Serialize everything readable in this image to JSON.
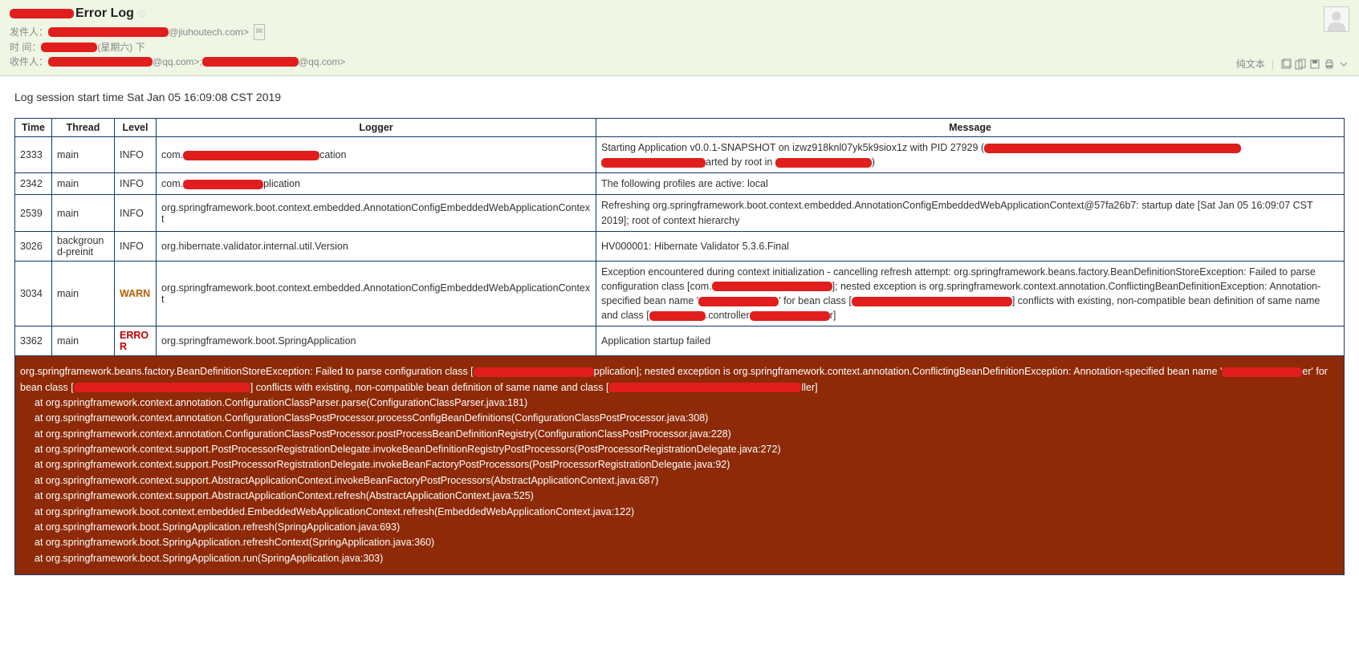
{
  "colors": {
    "header_bg": "#f0f6e4",
    "table_border": "#13396b",
    "stack_bg": "#8e2a07",
    "redact": "#e01e1e",
    "warn_text": "#b35c00",
    "error_text": "#c00000"
  },
  "header": {
    "subject_suffix": " Error Log",
    "star": "☆",
    "from_label": "发件人：",
    "from_suffix": "@jiuhoutech.com>",
    "time_label": "时   间：",
    "time_suffix": "(星期六) 下",
    "to_label": "收件人：",
    "to_mid1": "@qq.com>; ",
    "to_suffix": "@qq.com>",
    "text_mode": "纯文本"
  },
  "session_line": "Log session start time Sat Jan 05 16:09:08 CST 2019",
  "table": {
    "headers": {
      "time": "Time",
      "thread": "Thread",
      "level": "Level",
      "logger": "Logger",
      "message": "Message"
    },
    "rows": [
      {
        "time": "2333",
        "thread": "main",
        "level": "INFO",
        "logger_prefix": "com.",
        "logger_redact_w": 170,
        "logger_suffix": "cation",
        "message_parts": [
          {
            "t": "Starting Application v0.0.1-SNAPSHOT on izwz918knl07yk5k9siox1z with PID 27929 ("
          },
          {
            "r": 320
          },
          {
            "br": true
          },
          {
            "r": 130
          },
          {
            "t": "arted by root in "
          },
          {
            "r": 120
          },
          {
            "t": ")"
          }
        ]
      },
      {
        "time": "2342",
        "thread": "main",
        "level": "INFO",
        "logger_prefix": "com.",
        "logger_redact_w": 100,
        "logger_suffix": "plication",
        "message_parts": [
          {
            "t": "The following profiles are active: local"
          }
        ]
      },
      {
        "time": "2539",
        "thread": "main",
        "level": "INFO",
        "logger_prefix": "org.springframework.boot.context.embedded.AnnotationConfigEmbeddedWebApplicationContext",
        "logger_redact_w": 0,
        "logger_suffix": "",
        "message_parts": [
          {
            "t": "Refreshing org.springframework.boot.context.embedded.AnnotationConfigEmbeddedWebApplicationContext@57fa26b7: startup date [Sat Jan 05 16:09:07 CST 2019]; root of context hierarchy"
          }
        ]
      },
      {
        "time": "3026",
        "thread": "background-preinit",
        "level": "INFO",
        "logger_prefix": "org.hibernate.validator.internal.util.Version",
        "logger_redact_w": 0,
        "logger_suffix": "",
        "message_parts": [
          {
            "t": "HV000001: Hibernate Validator 5.3.6.Final"
          }
        ]
      },
      {
        "time": "3034",
        "thread": "main",
        "level": "WARN",
        "logger_prefix": "org.springframework.boot.context.embedded.AnnotationConfigEmbeddedWebApplicationContext",
        "logger_redact_w": 0,
        "logger_suffix": "",
        "message_parts": [
          {
            "t": "Exception encountered during context initialization - cancelling refresh attempt: org.springframework.beans.factory.BeanDefinitionStoreException: Failed to parse configuration class [com."
          },
          {
            "r": 150
          },
          {
            "t": "]; nested exception is org.springframework.context.annotation.ConflictingBeanDefinitionException: Annotation-specified bean name '"
          },
          {
            "r": 100
          },
          {
            "t": "' for bean class ["
          },
          {
            "r": 200
          },
          {
            "t": "] conflicts with existing, non-compatible bean definition of same name and class ["
          },
          {
            "r": 70
          },
          {
            "t": ".controller"
          },
          {
            "r": 100
          },
          {
            "t": "r]"
          }
        ]
      },
      {
        "time": "3362",
        "thread": "main",
        "level": "ERROR",
        "logger_prefix": "org.springframework.boot.SpringApplication",
        "logger_redact_w": 0,
        "logger_suffix": "",
        "message_parts": [
          {
            "t": "Application startup failed"
          }
        ]
      }
    ]
  },
  "stacktrace": {
    "top_parts": [
      {
        "t": "org.springframework.beans.factory.BeanDefinitionStoreException: Failed to parse configuration class ["
      },
      {
        "r": 150
      },
      {
        "t": "pplication]; nested exception is org.springframework.context.annotation.ConflictingBeanDefinitionException: Annotation-specified bean name '"
      },
      {
        "r": 100
      },
      {
        "t": "er' for bean class ["
      },
      {
        "r": 220
      },
      {
        "t": "] conflicts with existing, non-compatible bean definition of same name and class ["
      },
      {
        "r": 240
      },
      {
        "t": "ller]"
      }
    ],
    "frames": [
      "at org.springframework.context.annotation.ConfigurationClassParser.parse(ConfigurationClassParser.java:181)",
      "at org.springframework.context.annotation.ConfigurationClassPostProcessor.processConfigBeanDefinitions(ConfigurationClassPostProcessor.java:308)",
      "at org.springframework.context.annotation.ConfigurationClassPostProcessor.postProcessBeanDefinitionRegistry(ConfigurationClassPostProcessor.java:228)",
      "at org.springframework.context.support.PostProcessorRegistrationDelegate.invokeBeanDefinitionRegistryPostProcessors(PostProcessorRegistrationDelegate.java:272)",
      "at org.springframework.context.support.PostProcessorRegistrationDelegate.invokeBeanFactoryPostProcessors(PostProcessorRegistrationDelegate.java:92)",
      "at org.springframework.context.support.AbstractApplicationContext.invokeBeanFactoryPostProcessors(AbstractApplicationContext.java:687)",
      "at org.springframework.context.support.AbstractApplicationContext.refresh(AbstractApplicationContext.java:525)",
      "at org.springframework.boot.context.embedded.EmbeddedWebApplicationContext.refresh(EmbeddedWebApplicationContext.java:122)",
      "at org.springframework.boot.SpringApplication.refresh(SpringApplication.java:693)",
      "at org.springframework.boot.SpringApplication.refreshContext(SpringApplication.java:360)",
      "at org.springframework.boot.SpringApplication.run(SpringApplication.java:303)"
    ]
  }
}
